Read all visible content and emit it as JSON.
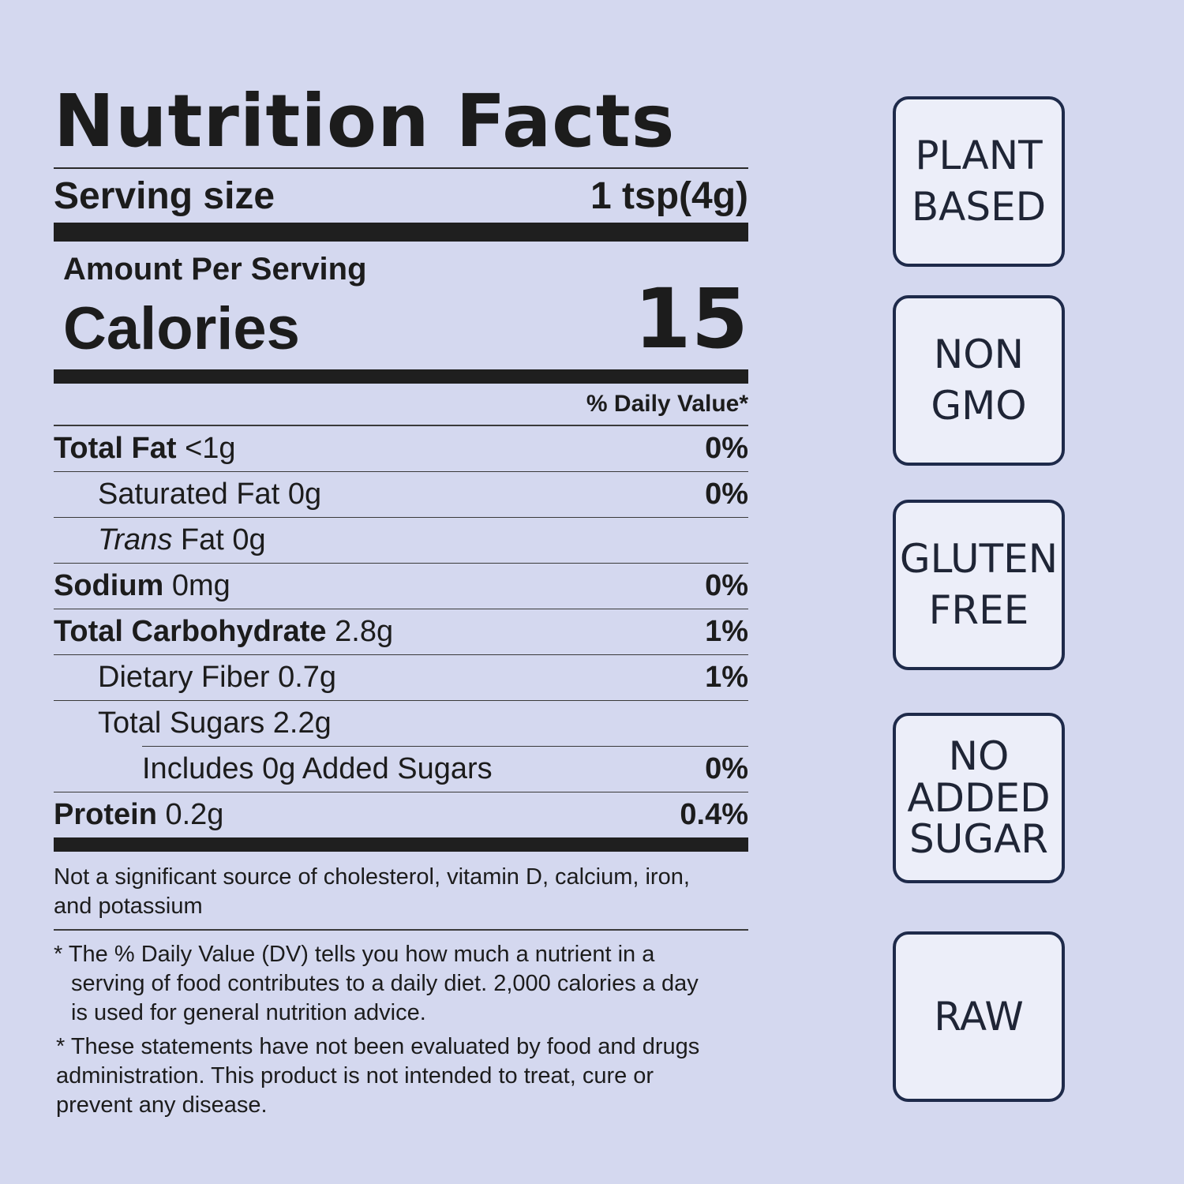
{
  "label": {
    "title": "Nutrition Facts",
    "serving_size_label": "Serving size",
    "serving_size_value": "1 tsp(4g)",
    "amount_per_serving": "Amount Per Serving",
    "calories_label": "Calories",
    "calories_value": "15",
    "daily_value_header": "% Daily Value*",
    "rows": [
      {
        "name": "Total Fat",
        "amount": "<1g",
        "pct": "0%"
      },
      {
        "name": "Saturated Fat",
        "amount": "0g",
        "pct": "0%"
      },
      {
        "name_italic": "Trans",
        "name": "Fat",
        "amount": "0g",
        "pct": ""
      },
      {
        "name": "Sodium",
        "amount": "0mg",
        "pct": "0%"
      },
      {
        "name": "Total Carbohydrate",
        "amount": "2.8g",
        "pct": "1%"
      },
      {
        "name": "Dietary Fiber",
        "amount": "0.7g",
        "pct": "1%"
      },
      {
        "name": "Total Sugars",
        "amount": "2.2g",
        "pct": ""
      },
      {
        "name": "Includes 0g Added Sugars",
        "amount": "",
        "pct": "0%"
      },
      {
        "name": "Protein",
        "amount": "0.2g",
        "pct": "0.4%"
      }
    ],
    "footnote_not_significant": "Not a significant source of cholesterol, vitamin D, calcium, iron, and potassium",
    "footnote_dv_star": "* The % Daily Value (DV) tells you how much a nutrient in a",
    "footnote_dv_rest": "serving of food contributes to a daily diet. 2,000 calories a day is used for general nutrition advice.",
    "footnote_fda": "* These statements have not been evaluated by food and drugs administration. This product is not intended to treat, cure or prevent any disease."
  },
  "badges": [
    {
      "line1": "PLANT",
      "line2": "BASED"
    },
    {
      "line1": "NON",
      "line2": "GMO"
    },
    {
      "line1": "GLUTEN",
      "line2": "FREE"
    },
    {
      "line1": "NO",
      "line2": "ADDED",
      "line3": "SUGAR"
    },
    {
      "line1": "RAW"
    }
  ],
  "colors": {
    "background": "#d4d8ef",
    "badge_border": "#1e2a4a",
    "badge_fill": "#eceef9"
  }
}
